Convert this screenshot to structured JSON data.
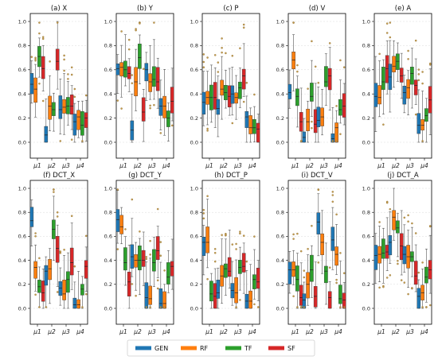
{
  "colors": {
    "GEN": "#1f77b4",
    "RF": "#ff7f0e",
    "TF": "#2ca02c",
    "SF": "#d62728"
  },
  "legend": [
    {
      "key": "GEN",
      "label": "GEN"
    },
    {
      "key": "RF",
      "label": "RF"
    },
    {
      "key": "TF",
      "label": "TF"
    },
    {
      "key": "SF",
      "label": "SF"
    }
  ],
  "chart_data": [
    {
      "type": "box",
      "title": "(a) X",
      "categories": [
        "μ1",
        "μ2",
        "μ3",
        "μ4"
      ],
      "ylim": [
        0,
        1
      ],
      "yticks": [
        "0.0",
        "0.2",
        "0.4",
        "0.6",
        "0.8",
        "1.0"
      ],
      "series": [
        {
          "name": "GEN",
          "medians": [
            0.48,
            0.06,
            0.27,
            0.17
          ]
        },
        {
          "name": "RF",
          "medians": [
            0.44,
            0.3,
            0.29,
            0.21
          ]
        },
        {
          "name": "TF",
          "medians": [
            0.71,
            0.27,
            0.3,
            0.14
          ]
        },
        {
          "name": "SF",
          "medians": [
            0.61,
            0.67,
            0.3,
            0.2
          ]
        }
      ]
    },
    {
      "type": "box",
      "title": "(b) Y",
      "categories": [
        "μ1",
        "μ2",
        "μ3",
        "μ4"
      ],
      "ylim": [
        0,
        1
      ],
      "yticks": [
        "0.0",
        "0.2",
        "0.4",
        "0.6",
        "0.8",
        "1.0"
      ],
      "series": [
        {
          "name": "GEN",
          "medians": [
            0.61,
            0.1,
            0.6,
            0.3
          ]
        },
        {
          "name": "RF",
          "medians": [
            0.62,
            0.5,
            0.5,
            0.3
          ]
        },
        {
          "name": "TF",
          "medians": [
            0.6,
            0.7,
            0.52,
            0.2
          ]
        },
        {
          "name": "SF",
          "medians": [
            0.57,
            0.25,
            0.5,
            0.34
          ]
        }
      ]
    },
    {
      "type": "box",
      "title": "(c) P",
      "categories": [
        "μ1",
        "μ2",
        "μ3",
        "μ4"
      ],
      "ylim": [
        0,
        1
      ],
      "yticks": [
        "0.0",
        "0.2",
        "0.4",
        "0.6",
        "0.8",
        "1.0"
      ],
      "series": [
        {
          "name": "GEN",
          "medians": [
            0.33,
            0.28,
            0.4,
            0.21
          ]
        },
        {
          "name": "RF",
          "medians": [
            0.37,
            0.44,
            0.37,
            0.12
          ]
        },
        {
          "name": "TF",
          "medians": [
            0.37,
            0.41,
            0.45,
            0.12
          ]
        },
        {
          "name": "SF",
          "medians": [
            0.37,
            0.38,
            0.55,
            0.11
          ]
        }
      ]
    },
    {
      "type": "box",
      "title": "(d) V",
      "categories": [
        "μ1",
        "μ2",
        "μ3",
        "μ4"
      ],
      "ylim": [
        0,
        1
      ],
      "yticks": [
        "0.0",
        "0.2",
        "0.4",
        "0.6",
        "0.8",
        "1.0"
      ],
      "series": [
        {
          "name": "GEN",
          "medians": [
            0.41,
            0.04,
            0.18,
            0.03
          ]
        },
        {
          "name": "RF",
          "medians": [
            0.68,
            0.17,
            0.21,
            0.12
          ]
        },
        {
          "name": "TF",
          "medians": [
            0.38,
            0.38,
            0.5,
            0.27
          ]
        },
        {
          "name": "SF",
          "medians": [
            0.17,
            0.15,
            0.55,
            0.3
          ]
        }
      ]
    },
    {
      "type": "box",
      "title": "(e) A",
      "categories": [
        "μ1",
        "μ2",
        "μ3",
        "μ4"
      ],
      "ylim": [
        0,
        1
      ],
      "yticks": [
        "0.0",
        "0.2",
        "0.4",
        "0.6",
        "0.8",
        "1.0"
      ],
      "series": [
        {
          "name": "GEN",
          "medians": [
            0.38,
            0.54,
            0.41,
            0.14
          ]
        },
        {
          "name": "RF",
          "medians": [
            0.37,
            0.63,
            0.45,
            0.14
          ]
        },
        {
          "name": "TF",
          "medians": [
            0.5,
            0.67,
            0.57,
            0.22
          ]
        },
        {
          "name": "SF",
          "medians": [
            0.61,
            0.55,
            0.47,
            0.35
          ]
        }
      ]
    },
    {
      "type": "box",
      "title": "(f) DCT_X",
      "categories": [
        "μ1",
        "μ2",
        "μ3",
        "μ4"
      ],
      "ylim": [
        0,
        1
      ],
      "yticks": [
        "0.0",
        "0.2",
        "0.4",
        "0.6",
        "0.8",
        "1.0"
      ],
      "series": [
        {
          "name": "GEN",
          "medians": [
            0.73,
            0.31,
            0.17,
            0.03
          ]
        },
        {
          "name": "RF",
          "medians": [
            0.34,
            0.33,
            0.12,
            0.03
          ]
        },
        {
          "name": "TF",
          "medians": [
            0.18,
            0.66,
            0.24,
            0.16
          ]
        },
        {
          "name": "SF",
          "medians": [
            0.13,
            0.5,
            0.38,
            0.35
          ]
        }
      ]
    },
    {
      "type": "box",
      "title": "(g) DCT_Y",
      "categories": [
        "μ1",
        "μ2",
        "μ3",
        "μ4"
      ],
      "ylim": [
        0,
        1
      ],
      "yticks": [
        "0.0",
        "0.2",
        "0.4",
        "0.6",
        "0.8",
        "1.0"
      ],
      "series": [
        {
          "name": "GEN",
          "medians": [
            0.74,
            0.43,
            0.09,
            0.04
          ]
        },
        {
          "name": "RF",
          "medians": [
            0.68,
            0.4,
            0.08,
            0.04
          ]
        },
        {
          "name": "TF",
          "medians": [
            0.38,
            0.4,
            0.38,
            0.26
          ]
        },
        {
          "name": "SF",
          "medians": [
            0.22,
            0.4,
            0.48,
            0.35
          ]
        }
      ]
    },
    {
      "type": "box",
      "title": "(h) DCT_P",
      "categories": [
        "μ1",
        "μ2",
        "μ3",
        "μ4"
      ],
      "ylim": [
        0,
        1
      ],
      "yticks": [
        "0.0",
        "0.2",
        "0.4",
        "0.6",
        "0.8",
        "1.0"
      ],
      "series": [
        {
          "name": "GEN",
          "medians": [
            0.55,
            0.13,
            0.15,
            0.06
          ]
        },
        {
          "name": "RF",
          "medians": [
            0.55,
            0.27,
            0.13,
            0.06
          ]
        },
        {
          "name": "TF",
          "medians": [
            0.12,
            0.33,
            0.34,
            0.24
          ]
        },
        {
          "name": "SF",
          "medians": [
            0.1,
            0.31,
            0.35,
            0.22
          ]
        }
      ]
    },
    {
      "type": "box",
      "title": "(i) DCT_V",
      "categories": [
        "μ1",
        "μ2",
        "μ3",
        "μ4"
      ],
      "ylim": [
        0,
        1
      ],
      "yticks": [
        "0.0",
        "0.2",
        "0.4",
        "0.6",
        "0.8",
        "1.0"
      ],
      "series": [
        {
          "name": "GEN",
          "medians": [
            0.32,
            0.07,
            0.72,
            0.57
          ]
        },
        {
          "name": "RF",
          "medians": [
            0.32,
            0.2,
            0.55,
            0.45
          ]
        },
        {
          "name": "TF",
          "medians": [
            0.24,
            0.32,
            0.31,
            0.08
          ]
        },
        {
          "name": "SF",
          "medians": [
            0.09,
            0.1,
            0.09,
            0.07
          ]
        }
      ]
    },
    {
      "type": "box",
      "title": "(j) DCT_A",
      "categories": [
        "μ1",
        "μ2",
        "μ3",
        "μ4"
      ],
      "ylim": [
        0,
        1
      ],
      "yticks": [
        "0.0",
        "0.2",
        "0.4",
        "0.6",
        "0.8",
        "1.0"
      ],
      "series": [
        {
          "name": "GEN",
          "medians": [
            0.44,
            0.55,
            0.45,
            0.1
          ]
        },
        {
          "name": "RF",
          "medians": [
            0.45,
            0.76,
            0.43,
            0.13
          ]
        },
        {
          "name": "TF",
          "medians": [
            0.46,
            0.67,
            0.43,
            0.26
          ]
        },
        {
          "name": "SF",
          "medians": [
            0.47,
            0.52,
            0.27,
            0.32
          ]
        }
      ]
    }
  ]
}
